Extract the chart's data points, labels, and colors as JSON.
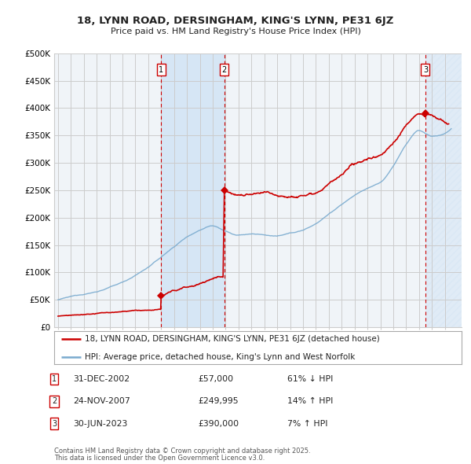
{
  "title": "18, LYNN ROAD, DERSINGHAM, KING'S LYNN, PE31 6JZ",
  "subtitle": "Price paid vs. HM Land Registry's House Price Index (HPI)",
  "ylim": [
    0,
    500000
  ],
  "yticks": [
    0,
    50000,
    100000,
    150000,
    200000,
    250000,
    300000,
    350000,
    400000,
    450000,
    500000
  ],
  "ytick_labels": [
    "£0",
    "£50K",
    "£100K",
    "£150K",
    "£200K",
    "£250K",
    "£300K",
    "£350K",
    "£400K",
    "£450K",
    "£500K"
  ],
  "xlim_start": 1994.7,
  "xlim_end": 2026.3,
  "background_color": "#ffffff",
  "plot_bg_color": "#f0f4f8",
  "grid_color": "#cccccc",
  "sale_color": "#cc0000",
  "hpi_color": "#7aabcf",
  "sale_dates": [
    2002.998,
    2007.899,
    2023.496
  ],
  "sale_prices": [
    57000,
    249995,
    390000
  ],
  "sale_labels": [
    "1",
    "2",
    "3"
  ],
  "shade_color": "#d6e6f5",
  "vline_color": "#cc0000",
  "footnote1": "Contains HM Land Registry data © Crown copyright and database right 2025.",
  "footnote2": "This data is licensed under the Open Government Licence v3.0.",
  "legend_line1": "18, LYNN ROAD, DERSINGHAM, KING'S LYNN, PE31 6JZ (detached house)",
  "legend_line2": "HPI: Average price, detached house, King's Lynn and West Norfolk",
  "table_rows": [
    {
      "label": "1",
      "date": "31-DEC-2002",
      "price": "£57,000",
      "hpi": "61% ↓ HPI"
    },
    {
      "label": "2",
      "date": "24-NOV-2007",
      "price": "£249,995",
      "hpi": "14% ↑ HPI"
    },
    {
      "label": "3",
      "date": "30-JUN-2023",
      "price": "£390,000",
      "hpi": "7% ↑ HPI"
    }
  ]
}
